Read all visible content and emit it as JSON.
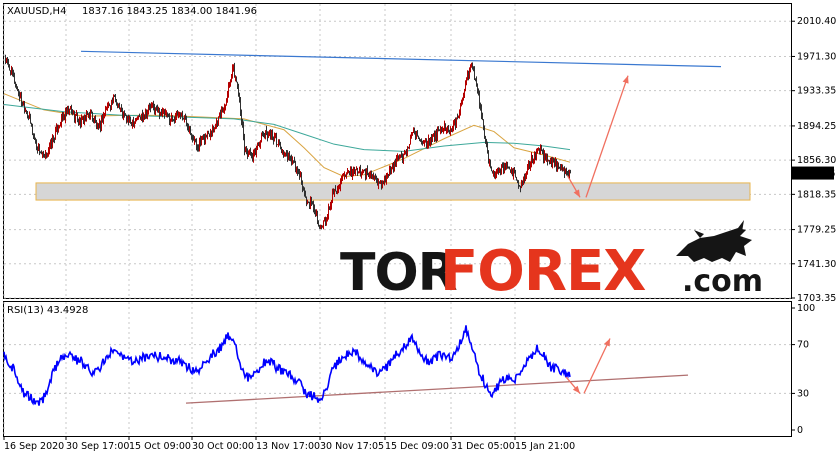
{
  "header": {
    "main_symbol": "XAUUSD,H4",
    "main_ohlc": "1837.16 1843.25 1834.00 1841.96",
    "rsi_label": "RSI(13) 43.4928"
  },
  "brand": {
    "tor": "TOR",
    "forex": "FOREX",
    "com": ".com"
  },
  "colors": {
    "bull": "#b40000",
    "bear": "#303030",
    "ma_fast": "#d9a441",
    "ma_slow": "#3da89a",
    "resistance": "#3a78d0",
    "support_zone_fill": "#d6d6d6",
    "support_zone_edge": "#e8b44c",
    "arrow": "#f07060",
    "rsi_line": "#0000ff",
    "rsi_trend": "#b07070",
    "price_tag_bg": "#000000",
    "price_tag_text": "#ffffff"
  },
  "chart_data": [
    {
      "type": "line",
      "subtype": "candlestick",
      "symbol": "XAUUSD",
      "timeframe": "H4",
      "last_price": "1841.96",
      "ylim": [
        1703.35,
        2029.5
      ],
      "y_ticks": [
        "2010.40",
        "1971.30",
        "1933.35",
        "1894.25",
        "1856.30",
        "1818.35",
        "1779.25",
        "1741.30",
        "1703.35"
      ],
      "x_ticks": [
        "16 Sep 2020",
        "30 Sep 17:00",
        "15 Oct 09:00",
        "30 Oct 00:00",
        "13 Nov 17:00",
        "30 Nov 17:05",
        "15 Dec 09:00",
        "31 Dec 05:00",
        "15 Jan 21:00"
      ],
      "price_path": [
        [
          0,
          1970
        ],
        [
          8,
          1950
        ],
        [
          16,
          1925
        ],
        [
          24,
          1905
        ],
        [
          32,
          1872
        ],
        [
          40,
          1858
        ],
        [
          48,
          1878
        ],
        [
          56,
          1900
        ],
        [
          66,
          1912
        ],
        [
          76,
          1898
        ],
        [
          86,
          1910
        ],
        [
          94,
          1890
        ],
        [
          102,
          1915
        ],
        [
          110,
          1925
        ],
        [
          118,
          1908
        ],
        [
          126,
          1898
        ],
        [
          136,
          1905
        ],
        [
          146,
          1915
        ],
        [
          156,
          1910
        ],
        [
          166,
          1902
        ],
        [
          176,
          1908
        ],
        [
          184,
          1895
        ],
        [
          192,
          1872
        ],
        [
          200,
          1880
        ],
        [
          210,
          1895
        ],
        [
          220,
          1915
        ],
        [
          228,
          1960
        ],
        [
          234,
          1935
        ],
        [
          240,
          1868
        ],
        [
          248,
          1858
        ],
        [
          256,
          1880
        ],
        [
          264,
          1888
        ],
        [
          272,
          1878
        ],
        [
          280,
          1862
        ],
        [
          288,
          1855
        ],
        [
          296,
          1835
        ],
        [
          302,
          1810
        ],
        [
          310,
          1803
        ],
        [
          316,
          1780
        ],
        [
          322,
          1790
        ],
        [
          328,
          1818
        ],
        [
          336,
          1832
        ],
        [
          344,
          1840
        ],
        [
          352,
          1845
        ],
        [
          360,
          1842
        ],
        [
          368,
          1838
        ],
        [
          376,
          1830
        ],
        [
          384,
          1840
        ],
        [
          392,
          1855
        ],
        [
          400,
          1862
        ],
        [
          408,
          1885
        ],
        [
          416,
          1880
        ],
        [
          424,
          1875
        ],
        [
          432,
          1885
        ],
        [
          440,
          1892
        ],
        [
          448,
          1888
        ],
        [
          456,
          1915
        ],
        [
          462,
          1948
        ],
        [
          468,
          1960
        ],
        [
          474,
          1930
        ],
        [
          480,
          1885
        ],
        [
          486,
          1845
        ],
        [
          492,
          1840
        ],
        [
          498,
          1848
        ],
        [
          504,
          1852
        ],
        [
          510,
          1840
        ],
        [
          516,
          1828
        ],
        [
          522,
          1842
        ],
        [
          528,
          1858
        ],
        [
          534,
          1868
        ],
        [
          540,
          1860
        ],
        [
          546,
          1856
        ],
        [
          552,
          1850
        ],
        [
          558,
          1846
        ],
        [
          562,
          1844
        ],
        [
          566,
          1841.96
        ]
      ],
      "moving_averages": [
        {
          "path": [
            [
              0,
              1930
            ],
            [
              40,
              1912
            ],
            [
              80,
              1905
            ],
            [
              120,
              1906
            ],
            [
              160,
              1906
            ],
            [
              200,
              1904
            ],
            [
              240,
              1902
            ],
            [
              280,
              1890
            ],
            [
              300,
              1870
            ],
            [
              320,
              1848
            ],
            [
              340,
              1838
            ],
            [
              360,
              1840
            ],
            [
              400,
              1858
            ],
            [
              440,
              1880
            ],
            [
              470,
              1895
            ],
            [
              490,
              1888
            ],
            [
              510,
              1870
            ],
            [
              540,
              1862
            ],
            [
              566,
              1854
            ]
          ]
        },
        {
          "path": [
            [
              0,
              1918
            ],
            [
              60,
              1910
            ],
            [
              120,
              1906
            ],
            [
              180,
              1904
            ],
            [
              230,
              1902
            ],
            [
              270,
              1896
            ],
            [
              300,
              1885
            ],
            [
              330,
              1874
            ],
            [
              360,
              1868
            ],
            [
              400,
              1866
            ],
            [
              440,
              1872
            ],
            [
              480,
              1876
            ],
            [
              510,
              1875
            ],
            [
              540,
              1872
            ],
            [
              566,
              1868
            ]
          ]
        }
      ],
      "resistance_line": [
        [
          81,
          1977
        ],
        [
          721,
          1960
        ]
      ],
      "support_zone": [
        1812,
        1831
      ],
      "forecast_arrows": [
        {
          "from": [
            566,
            1841.96
          ],
          "to": [
            580,
            1815
          ]
        },
        {
          "from": [
            586,
            1815
          ],
          "to": [
            628,
            1950
          ]
        }
      ]
    },
    {
      "type": "line",
      "name": "RSI(13)",
      "last_value": "43.4928",
      "ylim": [
        0,
        100
      ],
      "y_ticks": [
        "100",
        "70",
        "30",
        "0"
      ],
      "rsi_path": [
        [
          0,
          62
        ],
        [
          8,
          52
        ],
        [
          14,
          42
        ],
        [
          20,
          30
        ],
        [
          28,
          25
        ],
        [
          36,
          22
        ],
        [
          42,
          30
        ],
        [
          48,
          45
        ],
        [
          56,
          58
        ],
        [
          64,
          63
        ],
        [
          72,
          58
        ],
        [
          80,
          55
        ],
        [
          88,
          48
        ],
        [
          96,
          50
        ],
        [
          104,
          62
        ],
        [
          112,
          68
        ],
        [
          120,
          60
        ],
        [
          128,
          55
        ],
        [
          136,
          58
        ],
        [
          146,
          62
        ],
        [
          156,
          60
        ],
        [
          166,
          58
        ],
        [
          176,
          56
        ],
        [
          184,
          52
        ],
        [
          192,
          48
        ],
        [
          200,
          55
        ],
        [
          208,
          62
        ],
        [
          216,
          67
        ],
        [
          224,
          78
        ],
        [
          232,
          68
        ],
        [
          240,
          45
        ],
        [
          248,
          42
        ],
        [
          256,
          52
        ],
        [
          264,
          58
        ],
        [
          272,
          52
        ],
        [
          280,
          46
        ],
        [
          288,
          44
        ],
        [
          296,
          38
        ],
        [
          302,
          30
        ],
        [
          310,
          28
        ],
        [
          316,
          25
        ],
        [
          322,
          32
        ],
        [
          328,
          48
        ],
        [
          336,
          58
        ],
        [
          344,
          62
        ],
        [
          352,
          64
        ],
        [
          360,
          56
        ],
        [
          368,
          50
        ],
        [
          376,
          46
        ],
        [
          384,
          52
        ],
        [
          392,
          62
        ],
        [
          400,
          68
        ],
        [
          408,
          74
        ],
        [
          416,
          62
        ],
        [
          424,
          55
        ],
        [
          432,
          60
        ],
        [
          440,
          62
        ],
        [
          448,
          58
        ],
        [
          456,
          72
        ],
        [
          462,
          82
        ],
        [
          468,
          68
        ],
        [
          474,
          50
        ],
        [
          480,
          40
        ],
        [
          486,
          28
        ],
        [
          492,
          34
        ],
        [
          498,
          40
        ],
        [
          504,
          44
        ],
        [
          510,
          40
        ],
        [
          516,
          44
        ],
        [
          522,
          54
        ],
        [
          528,
          62
        ],
        [
          534,
          68
        ],
        [
          540,
          60
        ],
        [
          546,
          52
        ],
        [
          552,
          50
        ],
        [
          558,
          48
        ],
        [
          562,
          46
        ],
        [
          566,
          43.49
        ]
      ],
      "trend_line": [
        [
          186,
          22
        ],
        [
          688,
          45
        ]
      ],
      "forecast_arrows": [
        {
          "from": [
            566,
            43.49
          ],
          "to": [
            580,
            30
          ]
        },
        {
          "from": [
            584,
            30
          ],
          "to": [
            610,
            75
          ]
        }
      ]
    }
  ]
}
